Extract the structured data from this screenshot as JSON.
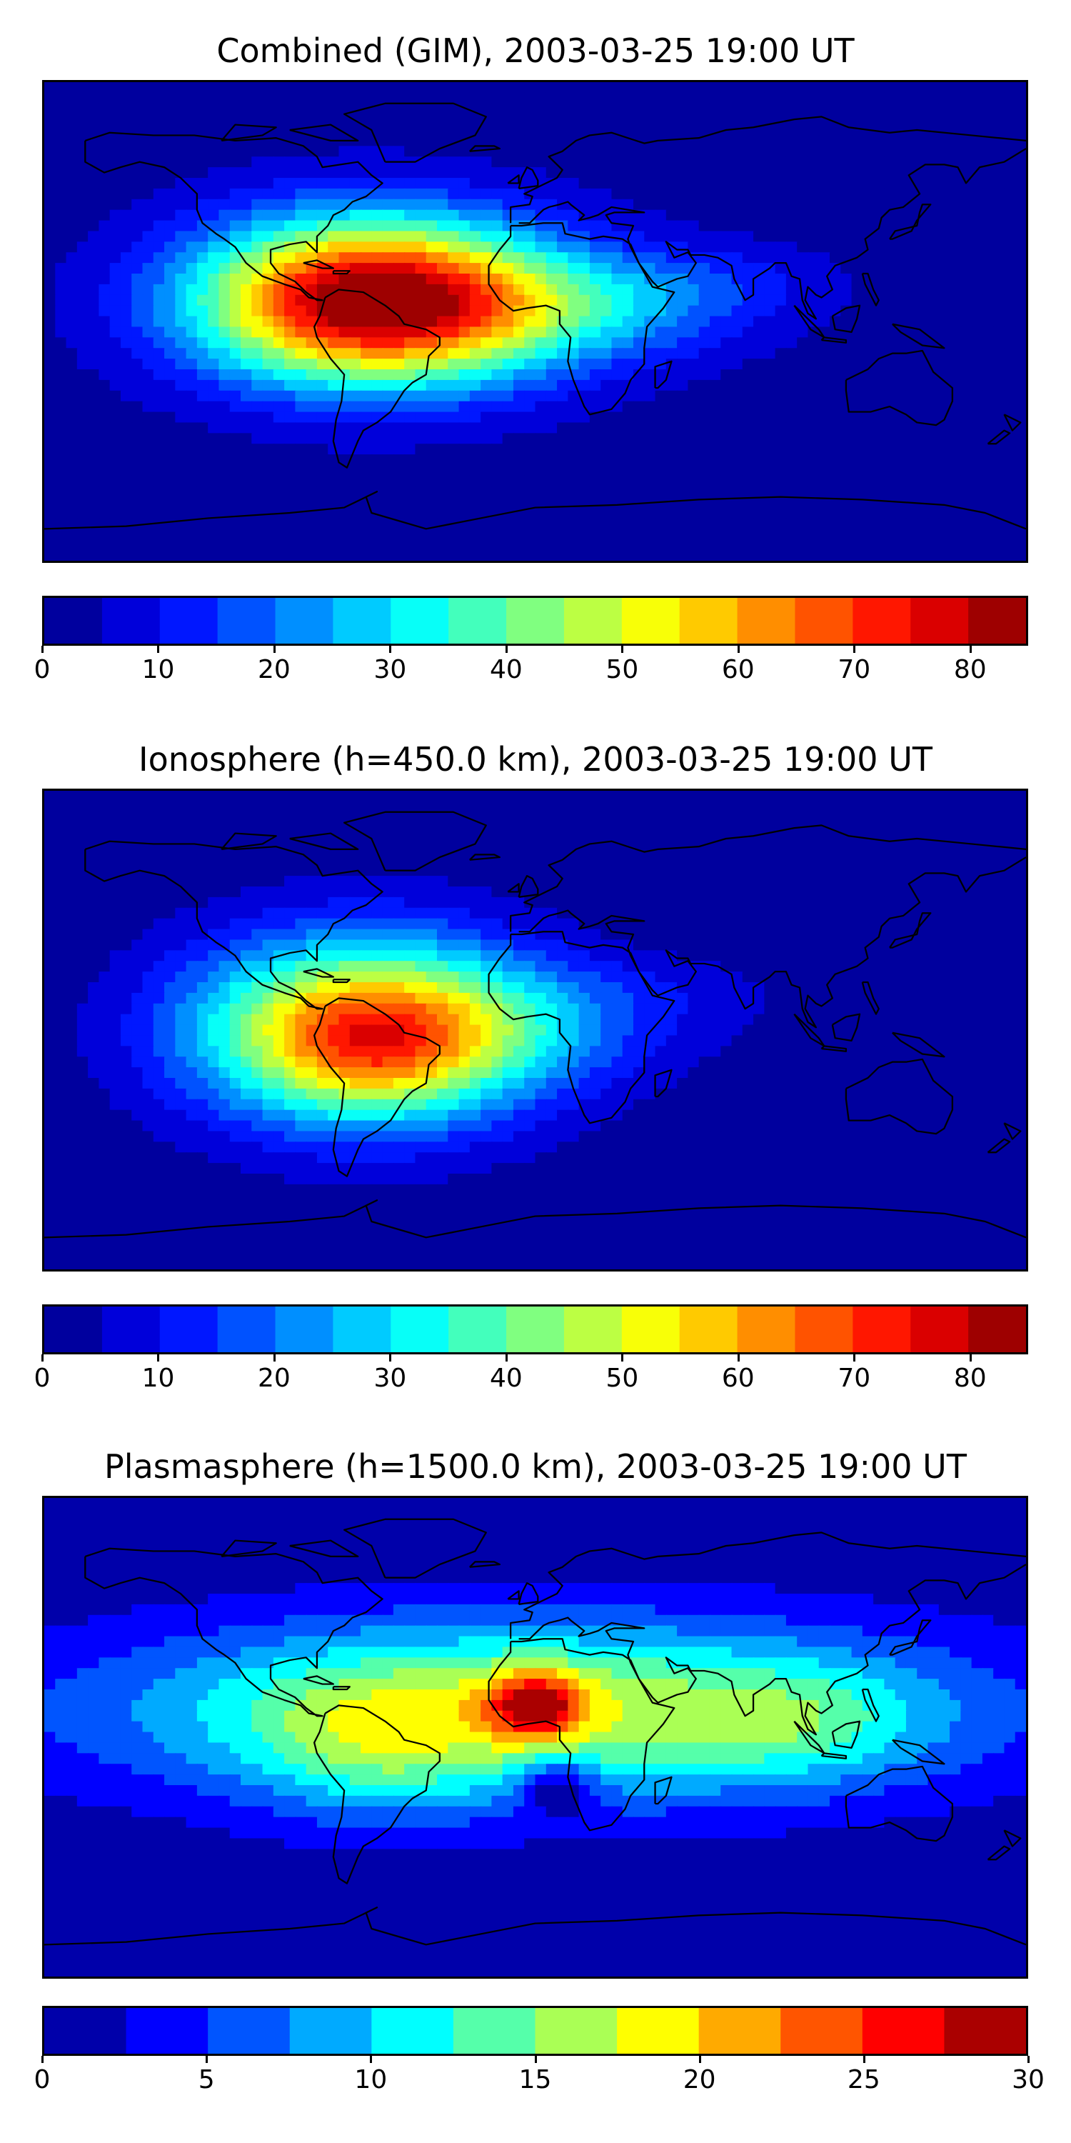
{
  "panels": [
    {
      "id": "combined",
      "title": "Combined (GIM), 2003-03-25 19:00 UT",
      "colorbar": {
        "min": 0,
        "max": 85,
        "levels": 17,
        "ticks": [
          "0",
          "10",
          "20",
          "30",
          "40",
          "50",
          "60",
          "70",
          "80"
        ],
        "tick_values": [
          0,
          10,
          20,
          30,
          40,
          50,
          60,
          70,
          80
        ]
      },
      "field": {
        "background_level": 2,
        "anomalies": [
          {
            "lon": -60,
            "lat": 8,
            "amp": 78,
            "sx": 45,
            "sy": 22
          },
          {
            "lon": -20,
            "lat": 5,
            "amp": 14,
            "sx": 60,
            "sy": 18
          },
          {
            "lon": 25,
            "lat": 5,
            "amp": 10,
            "sx": 35,
            "sy": 12
          },
          {
            "lon": 70,
            "lat": 15,
            "amp": 6,
            "sx": 30,
            "sy": 10
          }
        ]
      }
    },
    {
      "id": "ionosphere",
      "title": "Ionosphere  (h=450.0 km), 2003-03-25 19:00 UT",
      "colorbar": {
        "min": 0,
        "max": 85,
        "levels": 17,
        "ticks": [
          "0",
          "10",
          "20",
          "30",
          "40",
          "50",
          "60",
          "70",
          "80"
        ],
        "tick_values": [
          0,
          10,
          20,
          30,
          40,
          50,
          60,
          70,
          80
        ]
      },
      "field": {
        "background_level": 1,
        "anomalies": [
          {
            "lon": -62,
            "lat": 0,
            "amp": 60,
            "sx": 45,
            "sy": 25
          },
          {
            "lon": -60,
            "lat": -10,
            "amp": 10,
            "sx": 25,
            "sy": 15
          },
          {
            "lon": -15,
            "lat": 0,
            "amp": 12,
            "sx": 50,
            "sy": 15
          },
          {
            "lon": 50,
            "lat": 15,
            "amp": 4,
            "sx": 40,
            "sy": 10
          }
        ]
      }
    },
    {
      "id": "plasmasphere",
      "title": "Plasmasphere (h=1500.0 km), 2003-03-25 19:00 UT",
      "colorbar": {
        "min": 0,
        "max": 30,
        "levels": 12,
        "ticks": [
          "0",
          "5",
          "10",
          "15",
          "20",
          "25",
          "30"
        ],
        "tick_values": [
          0,
          5,
          10,
          15,
          20,
          25,
          30
        ]
      },
      "field": {
        "background_level": 0.5,
        "anomalies": [
          {
            "lon": 0,
            "lat": 10,
            "amp": 17,
            "sx": 110,
            "sy": 24
          },
          {
            "lon": 0,
            "lat": 12,
            "amp": 14,
            "sx": 12,
            "sy": 9
          },
          {
            "lon": -60,
            "lat": -5,
            "amp": 5,
            "sx": 30,
            "sy": 20
          },
          {
            "lon": 8,
            "lat": -18,
            "amp": -8,
            "sx": 10,
            "sy": 8
          },
          {
            "lon": 100,
            "lat": 5,
            "amp": 4,
            "sx": 30,
            "sy": 15
          }
        ]
      }
    }
  ],
  "colormap": "jet"
}
